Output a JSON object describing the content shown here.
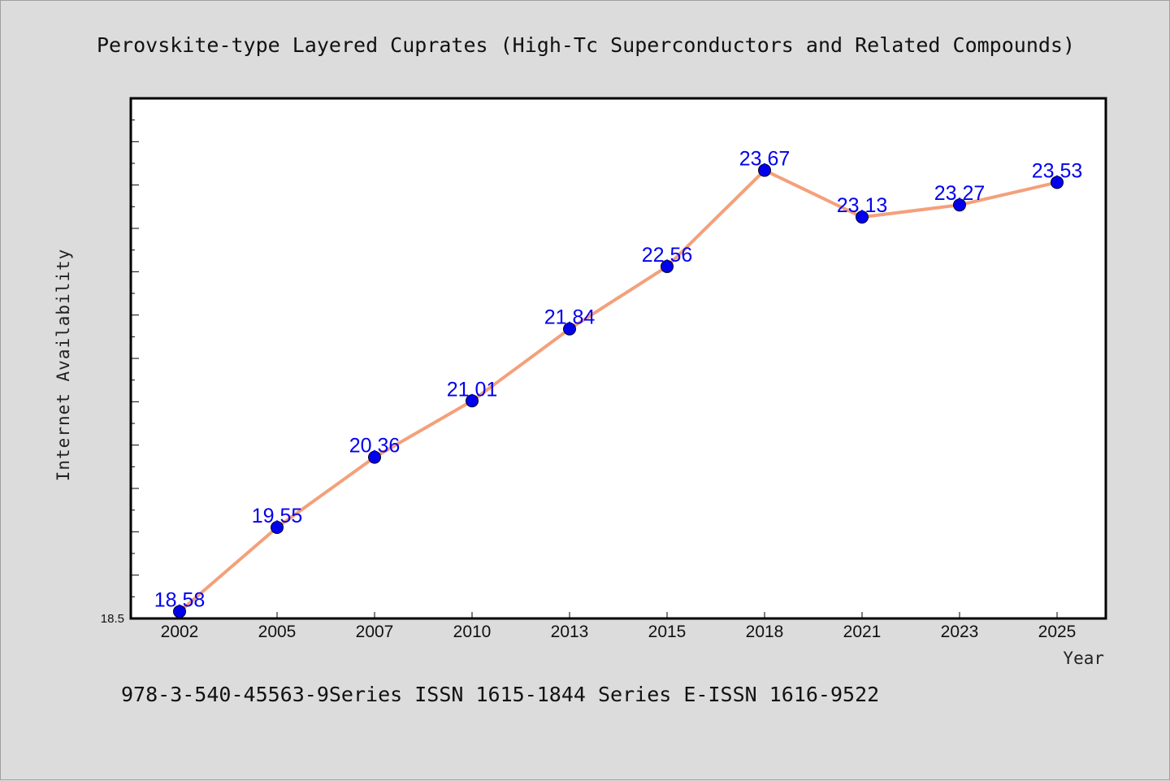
{
  "chart_data": {
    "type": "line",
    "title": "Perovskite-type Layered Cuprates (High-Tc Superconductors and Related Compounds)",
    "xlabel": "Year",
    "ylabel": "Internet Availability",
    "categories": [
      "2002",
      "2005",
      "2007",
      "2010",
      "2013",
      "2015",
      "2018",
      "2021",
      "2023",
      "2025"
    ],
    "series": [
      {
        "values": [
          18.58,
          19.55,
          20.36,
          21.01,
          21.84,
          22.56,
          23.67,
          23.13,
          23.27,
          23.53
        ],
        "labels": [
          "18.58",
          "19.55",
          "20.36",
          "21.01",
          "21.84",
          "22.56",
          "23.67",
          "23.13",
          "23.27",
          "23.53"
        ]
      }
    ],
    "ylim": [
      18.5,
      24.5
    ],
    "yticks_labeled": [
      "18.5"
    ],
    "grid": false,
    "legend": "none",
    "line_color": "#f4a07a",
    "marker_color": "#0000ee",
    "label_color": "#0000ee"
  },
  "footer": "978-3-540-45563-9Series ISSN 1615-1844 Series E-ISSN 1616-9522"
}
